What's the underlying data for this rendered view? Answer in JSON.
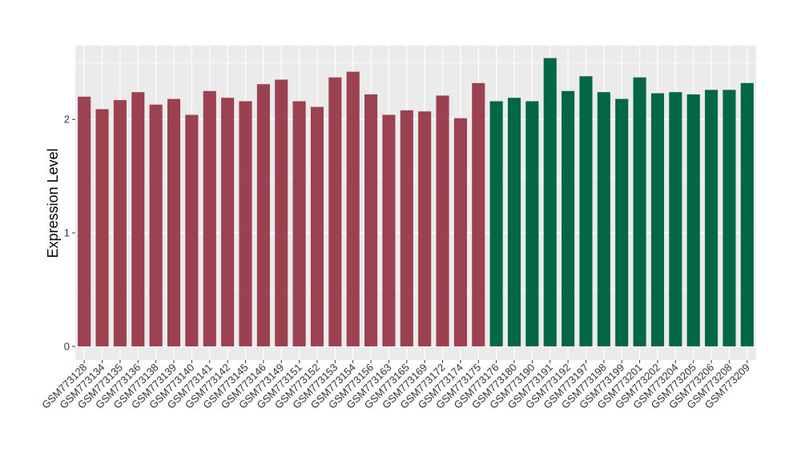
{
  "chart_data": {
    "type": "bar",
    "title": "",
    "xlabel": "",
    "ylabel": "Expression Level",
    "ylim": [
      -0.12,
      2.65
    ],
    "yticks": [
      0,
      1,
      2
    ],
    "grid": true,
    "legend": "none",
    "categories": [
      "GSM773128",
      "GSM773134",
      "GSM773135",
      "GSM773136",
      "GSM773138",
      "GSM773139",
      "GSM773140",
      "GSM773141",
      "GSM773142",
      "GSM773145",
      "GSM773146",
      "GSM773149",
      "GSM773151",
      "GSM773152",
      "GSM773153",
      "GSM773154",
      "GSM773156",
      "GSM773163",
      "GSM773165",
      "GSM773169",
      "GSM773172",
      "GSM773174",
      "GSM773175",
      "GSM773176",
      "GSM773180",
      "GSM773190",
      "GSM773191",
      "GSM773192",
      "GSM773197",
      "GSM773198",
      "GSM773199",
      "GSM773201",
      "GSM773202",
      "GSM773204",
      "GSM773205",
      "GSM773206",
      "GSM773208",
      "GSM773209"
    ],
    "values": [
      2.2,
      2.09,
      2.17,
      2.24,
      2.13,
      2.18,
      2.04,
      2.25,
      2.19,
      2.16,
      2.31,
      2.35,
      2.16,
      2.11,
      2.37,
      2.42,
      2.22,
      2.04,
      2.08,
      2.07,
      2.21,
      2.01,
      2.32,
      2.16,
      2.19,
      2.16,
      2.54,
      2.25,
      2.38,
      2.24,
      2.18,
      2.37,
      2.23,
      2.24,
      2.22,
      2.26,
      2.26,
      2.32
    ],
    "groups": [
      "a",
      "a",
      "a",
      "a",
      "a",
      "a",
      "a",
      "a",
      "a",
      "a",
      "a",
      "a",
      "a",
      "a",
      "a",
      "a",
      "a",
      "a",
      "a",
      "a",
      "a",
      "a",
      "a",
      "b",
      "b",
      "b",
      "b",
      "b",
      "b",
      "b",
      "b",
      "b",
      "b",
      "b",
      "b",
      "b",
      "b",
      "b"
    ],
    "colors": {
      "a": "#9b4150",
      "b": "#036646",
      "panel": "#ebebeb",
      "grid": "#ffffff",
      "text": "#333333"
    }
  }
}
